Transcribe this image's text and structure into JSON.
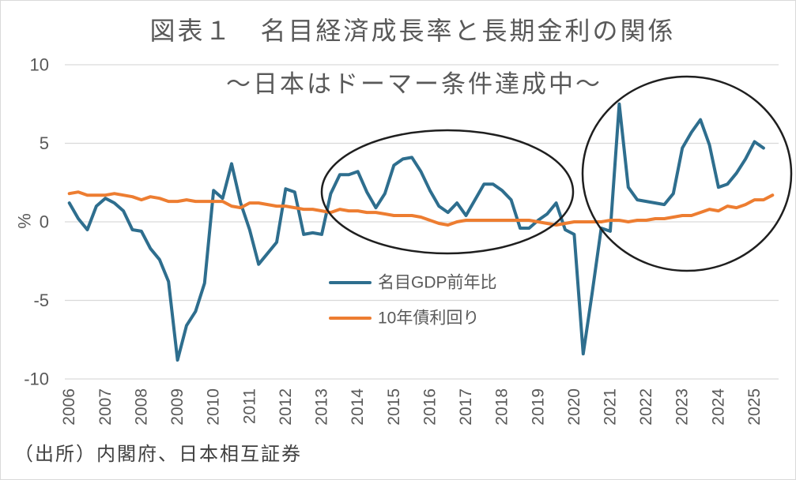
{
  "chart_data": {
    "type": "line",
    "title": "図表１　名目経済成長率と長期金利の関係",
    "subtitle": "～日本はドーマー条件達成中～",
    "xlabel": "",
    "ylabel": "%",
    "ylim": [
      -10,
      10
    ],
    "yticks": [
      10,
      5,
      0,
      -5,
      -10
    ],
    "xlim": [
      2005.875,
      2025.625
    ],
    "xticks": [
      2006,
      2007,
      2008,
      2009,
      2010,
      2011,
      2012,
      2013,
      2014,
      2015,
      2016,
      2017,
      2018,
      2019,
      2020,
      2021,
      2022,
      2023,
      2024,
      2025
    ],
    "grid": true,
    "x": [
      2006,
      2006.25,
      2006.5,
      2006.75,
      2007,
      2007.25,
      2007.5,
      2007.75,
      2008,
      2008.25,
      2008.5,
      2008.75,
      2009,
      2009.25,
      2009.5,
      2009.75,
      2010,
      2010.25,
      2010.5,
      2010.75,
      2011,
      2011.25,
      2011.5,
      2011.75,
      2012,
      2012.25,
      2012.5,
      2012.75,
      2013,
      2013.25,
      2013.5,
      2013.75,
      2014,
      2014.25,
      2014.5,
      2014.75,
      2015,
      2015.25,
      2015.5,
      2015.75,
      2016,
      2016.25,
      2016.5,
      2016.75,
      2017,
      2017.25,
      2017.5,
      2017.75,
      2018,
      2018.25,
      2018.5,
      2018.75,
      2019,
      2019.25,
      2019.5,
      2019.75,
      2020,
      2020.25,
      2020.5,
      2020.75,
      2021,
      2021.25,
      2021.5,
      2021.75,
      2022,
      2022.25,
      2022.5,
      2022.75,
      2023,
      2023.25,
      2023.5,
      2023.75,
      2024,
      2024.25,
      2024.5,
      2024.75,
      2025,
      2025.25,
      2025.5
    ],
    "series": [
      {
        "name": "名目GDP前年比",
        "color": "#2E6E8E",
        "values": [
          1.2,
          0.2,
          -0.5,
          1.0,
          1.5,
          1.2,
          0.7,
          -0.5,
          -0.6,
          -1.7,
          -2.4,
          -3.8,
          -8.8,
          -6.6,
          -5.7,
          -3.9,
          2.0,
          1.5,
          3.7,
          1.2,
          -0.5,
          -2.7,
          -2.0,
          -1.3,
          2.1,
          1.9,
          -0.8,
          -0.7,
          -0.8,
          1.8,
          3.0,
          3.0,
          3.2,
          1.9,
          0.9,
          1.8,
          3.6,
          4.0,
          4.1,
          3.2,
          2.0,
          1.0,
          0.6,
          1.2,
          0.4,
          1.4,
          2.4,
          2.4,
          2.0,
          1.4,
          -0.4,
          -0.4,
          0.1,
          0.5,
          1.2,
          -0.5,
          -0.8,
          -8.4,
          -4.5,
          -0.4,
          -0.6,
          7.5,
          2.2,
          1.4,
          1.3,
          1.2,
          1.1,
          1.8,
          4.7,
          5.7,
          6.5,
          4.9,
          2.2,
          2.4,
          3.1,
          4.0,
          5.1,
          4.7,
          null
        ]
      },
      {
        "name": "10年債利回り",
        "color": "#ED7D31",
        "values": [
          1.8,
          1.9,
          1.7,
          1.7,
          1.7,
          1.8,
          1.7,
          1.6,
          1.4,
          1.6,
          1.5,
          1.3,
          1.3,
          1.4,
          1.3,
          1.3,
          1.3,
          1.3,
          1.0,
          0.9,
          1.2,
          1.2,
          1.1,
          1.0,
          1.0,
          0.9,
          0.8,
          0.8,
          0.7,
          0.6,
          0.8,
          0.7,
          0.7,
          0.6,
          0.6,
          0.5,
          0.4,
          0.4,
          0.4,
          0.3,
          0.1,
          -0.1,
          -0.2,
          0.0,
          0.1,
          0.1,
          0.1,
          0.1,
          0.1,
          0.1,
          0.1,
          0.1,
          0.0,
          -0.1,
          -0.2,
          -0.1,
          0.0,
          0.0,
          0.0,
          0.0,
          0.1,
          0.1,
          0.0,
          0.1,
          0.1,
          0.2,
          0.2,
          0.3,
          0.4,
          0.4,
          0.6,
          0.8,
          0.7,
          1.0,
          0.9,
          1.1,
          1.4,
          1.4,
          1.7
        ]
      }
    ]
  },
  "source_note": "（出所）内閣府、日本相互証券"
}
